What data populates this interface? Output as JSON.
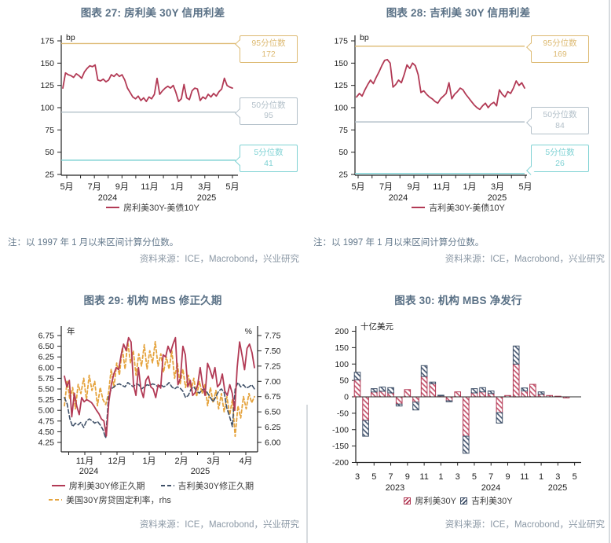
{
  "palette": {
    "title_color": "#5a7186",
    "note_color": "#64798c",
    "source_color": "#8b98a5",
    "axis_color": "#222222",
    "fannie_red": "#b23a55",
    "ginnie_navy": "#3f5068",
    "mortgage_gold": "#e5a43f",
    "pct95_gold": "#ddba72",
    "pct50_gray": "#b3c0c9",
    "pct5_teal": "#7fd2d4"
  },
  "chart_data": [
    {
      "id": "fig27",
      "type": "line",
      "title": "图表 27: 房利美 30Y 信用利差",
      "unit": "bp",
      "ylim": [
        25,
        175
      ],
      "yticks": [
        "175",
        "150",
        "125",
        "100",
        "75",
        "50",
        "25"
      ],
      "x_months": [
        "5月",
        "7月",
        "9月",
        "11月",
        "1月",
        "3月",
        "5月"
      ],
      "x_years": [
        "2024",
        "2025"
      ],
      "grid": false,
      "legend_position": "bottom",
      "series": [
        {
          "name": "房利美30Y-美债10Y",
          "color": "#b23a55",
          "style": "solid",
          "values": [
            122,
            139,
            137,
            136,
            134,
            138,
            136,
            133,
            140,
            144,
            147,
            146,
            148,
            131,
            130,
            132,
            129,
            131,
            137,
            135,
            138,
            135,
            137,
            131,
            122,
            117,
            112,
            110,
            113,
            108,
            111,
            107,
            112,
            110,
            115,
            133,
            115,
            119,
            122,
            124,
            122,
            125,
            117,
            107,
            110,
            126,
            111,
            109,
            119,
            122,
            121,
            108,
            112,
            110,
            115,
            112,
            116,
            113,
            118,
            121,
            133,
            125,
            123,
            122
          ]
        }
      ],
      "percentiles": [
        {
          "label": "95分位数",
          "value": 172,
          "color": "#ddba72"
        },
        {
          "label": "50分位数",
          "value": 95,
          "color": "#b3c0c9"
        },
        {
          "label": "5分位数",
          "value": 41,
          "color": "#7fd2d4"
        }
      ],
      "note": "注：以 1997 年 1 月以来区间计算分位数。",
      "source": "资料来源：ICE，Macrobond，兴业研究"
    },
    {
      "id": "fig28",
      "type": "line",
      "title": "图表 28: 吉利美 30Y 信用利差",
      "unit": "bp",
      "ylim": [
        25,
        175
      ],
      "yticks": [
        "175",
        "150",
        "125",
        "100",
        "75",
        "50",
        "25"
      ],
      "x_months": [
        "5月",
        "7月",
        "9月",
        "11月",
        "1月",
        "3月",
        "5月"
      ],
      "x_years": [
        "2024",
        "2025"
      ],
      "grid": false,
      "legend_position": "bottom",
      "series": [
        {
          "name": "吉利美30Y-美债10Y",
          "color": "#b23a55",
          "style": "solid",
          "values": [
            112,
            116,
            113,
            120,
            126,
            131,
            127,
            134,
            140,
            147,
            153,
            154,
            150,
            123,
            126,
            131,
            128,
            137,
            148,
            144,
            150,
            147,
            137,
            117,
            119,
            115,
            112,
            110,
            107,
            105,
            110,
            113,
            116,
            128,
            110,
            115,
            118,
            122,
            120,
            115,
            111,
            107,
            103,
            100,
            98,
            102,
            105,
            100,
            104,
            106,
            102,
            120,
            115,
            112,
            118,
            116,
            122,
            130,
            125,
            128,
            122
          ]
        }
      ],
      "percentiles": [
        {
          "label": "95分位数",
          "value": 169,
          "color": "#ddba72"
        },
        {
          "label": "50分位数",
          "value": 84,
          "color": "#b3c0c9"
        },
        {
          "label": "5分位数",
          "value": 26,
          "color": "#7fd2d4"
        }
      ],
      "note": "注：以 1997 年 1 月以来区间计算分位数。",
      "source": "资料来源：ICE，Macrobond，兴业研究"
    },
    {
      "id": "fig29",
      "type": "line",
      "title": "图表 29: 机构 MBS 修正久期",
      "unit_left": "年",
      "unit_right": "%",
      "ylim_left": [
        4.25,
        6.75
      ],
      "yticks_left": [
        "6.75",
        "6.50",
        "6.25",
        "6.00",
        "5.75",
        "5.50",
        "5.25",
        "5.00",
        "4.75",
        "4.50",
        "4.25"
      ],
      "ylim_right": [
        6.0,
        7.75
      ],
      "yticks_right": [
        "7.75",
        "7.50",
        "7.25",
        "7.00",
        "6.75",
        "6.50",
        "6.25",
        "6.00"
      ],
      "x_months": [
        "11月",
        "12月",
        "1月",
        "2月",
        "3月",
        "4月"
      ],
      "x_years": [
        "2024",
        "2025"
      ],
      "grid": false,
      "legend_position": "bottom",
      "series": [
        {
          "name": "房利美30Y修正久期",
          "color": "#b23a55",
          "style": "solid",
          "axis": "left",
          "values": [
            5.8,
            5.55,
            5.7,
            4.85,
            5.4,
            5.1,
            4.9,
            5.3,
            5.2,
            5.25,
            5.22,
            5.18,
            5.1,
            5.0,
            4.92,
            4.8,
            4.75,
            4.4,
            5.2,
            5.6,
            5.85,
            6.0,
            5.95,
            6.3,
            6.55,
            6.4,
            6.7,
            6.6,
            5.6,
            5.35,
            6.0,
            5.5,
            5.3,
            5.7,
            5.8,
            5.55,
            5.5,
            5.3,
            5.6,
            5.52,
            6.3,
            6.25,
            6.5,
            6.35,
            6.55,
            6.7,
            5.6,
            5.75,
            6.5,
            6.3,
            5.55,
            5.7,
            5.35,
            5.42,
            5.6,
            6.0,
            5.6,
            5.35,
            6.1,
            5.95,
            5.75,
            6.0,
            5.55,
            5.62,
            5.85,
            5.45,
            5.35,
            5.6,
            5.4,
            5.0,
            6.0,
            6.6,
            6.28,
            5.95,
            6.45,
            6.55,
            6.35,
            6.0
          ]
        },
        {
          "name": "吉利美30Y修正久期",
          "color": "#3f5068",
          "style": "dashed",
          "axis": "left",
          "values": [
            5.3,
            5.15,
            4.8,
            4.62,
            4.7,
            4.66,
            4.72,
            4.6,
            4.75,
            4.8,
            4.76,
            4.7,
            4.74,
            4.66,
            4.55,
            4.35,
            5.3,
            5.5,
            5.55,
            5.6,
            5.62,
            5.58,
            5.55,
            5.65,
            5.6,
            5.55,
            5.62,
            5.6,
            5.5,
            5.55,
            5.6,
            5.58,
            5.62,
            5.6,
            5.55,
            5.6,
            5.55,
            5.58,
            5.65,
            5.55,
            5.5,
            5.55,
            5.52,
            5.45,
            5.3,
            5.35,
            5.5,
            5.55,
            5.45,
            5.4,
            5.48,
            5.5,
            5.4,
            5.3,
            5.2,
            5.32,
            5.45,
            5.5,
            5.42,
            5.05,
            4.85,
            4.62,
            5.5,
            5.65,
            5.55,
            5.6,
            5.52,
            5.55,
            5.6,
            5.5
          ]
        },
        {
          "name": "美国30Y房贷固定利率，rhs",
          "color": "#e5a43f",
          "style": "dashed",
          "axis": "right",
          "values": [
            6.6,
            7.0,
            6.7,
            6.9,
            6.55,
            6.95,
            6.8,
            7.05,
            6.7,
            7.1,
            6.85,
            7.0,
            6.6,
            6.9,
            6.7,
            6.62,
            6.8,
            7.2,
            6.9,
            7.3,
            7.1,
            7.55,
            7.2,
            7.65,
            7.3,
            7.5,
            7.1,
            7.45,
            7.25,
            7.6,
            7.2,
            7.5,
            7.3,
            7.65,
            7.25,
            7.45,
            7.15,
            7.4,
            7.2,
            7.5,
            7.05,
            7.3,
            6.95,
            7.2,
            6.9,
            7.1,
            6.85,
            7.05,
            6.75,
            7.0,
            6.8,
            6.95,
            6.6,
            6.9,
            6.65,
            6.85,
            6.55,
            6.8,
            6.5,
            6.75,
            6.45,
            6.7,
            6.1,
            6.6,
            6.4,
            6.75,
            6.55,
            6.8,
            6.65,
            6.75
          ]
        }
      ],
      "source": "资料来源：ICE，Macrobond，兴业研究"
    },
    {
      "id": "fig30",
      "type": "bar",
      "title": "图表 30: 机构 MBS 净发行",
      "unit": "十亿美元",
      "ylim": [
        -200,
        200
      ],
      "yticks": [
        "200",
        "150",
        "100",
        "50",
        "0",
        "-50",
        "-100",
        "-150",
        "-200"
      ],
      "x_ticks": [
        "3",
        "5",
        "7",
        "9",
        "11",
        "1",
        "3",
        "5",
        "7",
        "9",
        "11",
        "1",
        "3",
        "5"
      ],
      "x_tick_month_index": [
        0,
        2,
        4,
        6,
        8,
        10,
        12,
        14,
        16,
        18,
        20,
        22,
        24,
        26
      ],
      "x_years": [
        "2023",
        "2024",
        "2025"
      ],
      "stacked": true,
      "grid": false,
      "legend_position": "bottom",
      "series": [
        {
          "name": "房利美30Y",
          "color": "#b23a55",
          "hatch": true,
          "values": [
            52,
            -72,
            15,
            17,
            12,
            -22,
            22,
            -16,
            62,
            40,
            3,
            -12,
            15,
            -120,
            12,
            15,
            10,
            -48,
            4,
            100,
            18,
            38,
            8,
            4,
            2,
            -3
          ]
        },
        {
          "name": "吉利美30Y",
          "color": "#3f5068",
          "hatch": true,
          "values": [
            23,
            -48,
            10,
            13,
            16,
            -6,
            0,
            -24,
            33,
            5,
            2,
            -3,
            0,
            -52,
            13,
            13,
            8,
            -32,
            0,
            55,
            9,
            0,
            7,
            0,
            0,
            0
          ]
        }
      ],
      "source": "资料来源：ICE，Macrobond，兴业研究"
    }
  ]
}
